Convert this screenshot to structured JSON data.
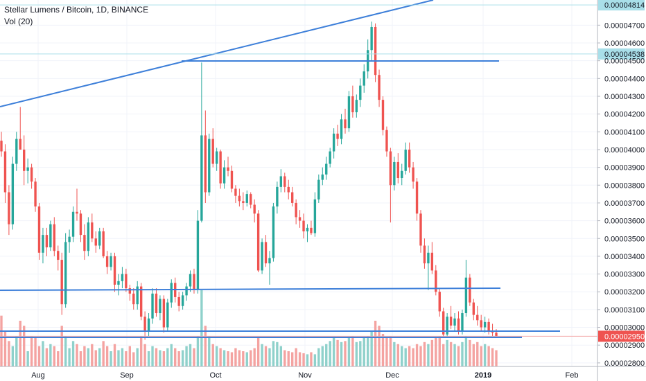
{
  "legend": {
    "title": "Stellar Lumens / Bitcoin, 1D, BINANCE",
    "volume_label": "Vol (20)"
  },
  "colors": {
    "up": "#26a69a",
    "down": "#ef5350",
    "up_volume": "#8fd1cb",
    "down_volume": "#f4a3a1",
    "trendline": "#3d7fd9",
    "crosshair": "#a9dfe9",
    "last_price_line": "#f3a6a6",
    "grid": "#f0f3fa",
    "axis": "#131722"
  },
  "chart_data": {
    "type": "candlestick",
    "title": "Stellar Lumens / Bitcoin, 1D, BINANCE",
    "ylim": [
      2.78e-05,
      4.83e-05
    ],
    "y_ticks": [
      "0.00002800",
      "0.00002900",
      "0.00003000",
      "0.00003100",
      "0.00003200",
      "0.00003300",
      "0.00003400",
      "0.00003500",
      "0.00003600",
      "0.00003700",
      "0.00003800",
      "0.00003900",
      "0.00004000",
      "0.00004100",
      "0.00004200",
      "0.00004300",
      "0.00004400",
      "0.00004500",
      "0.00004600",
      "0.00004700"
    ],
    "x_ticks": [
      "Aug",
      "Sep",
      "Oct",
      "Nov",
      "Dec",
      "2019",
      "Feb"
    ],
    "price_tags": [
      {
        "label": "0.00004814",
        "value": 4.814e-05,
        "style": "crosshair"
      },
      {
        "label": "0.00004538",
        "value": 4.538e-05,
        "style": "crosshair"
      },
      {
        "label": "0.00002950",
        "value": 2.95e-05,
        "style": "last"
      }
    ],
    "volume_label": "Vol (20)",
    "candles": [
      {
        "o": 4050,
        "h": 4100,
        "l": 3960,
        "c": 3990
      },
      {
        "o": 3990,
        "h": 4030,
        "l": 3700,
        "c": 3760
      },
      {
        "o": 3760,
        "h": 3800,
        "l": 3520,
        "c": 3580
      },
      {
        "o": 3580,
        "h": 3960,
        "l": 3550,
        "c": 3920
      },
      {
        "o": 3920,
        "h": 4100,
        "l": 3880,
        "c": 4060
      },
      {
        "o": 4060,
        "h": 4240,
        "l": 4000,
        "c": 4000
      },
      {
        "o": 4000,
        "h": 4080,
        "l": 3800,
        "c": 3880
      },
      {
        "o": 3880,
        "h": 3950,
        "l": 3810,
        "c": 3900
      },
      {
        "o": 3900,
        "h": 3920,
        "l": 3780,
        "c": 3820
      },
      {
        "o": 3820,
        "h": 3840,
        "l": 3650,
        "c": 3680
      },
      {
        "o": 3680,
        "h": 3700,
        "l": 3380,
        "c": 3420
      },
      {
        "o": 3420,
        "h": 3560,
        "l": 3360,
        "c": 3520
      },
      {
        "o": 3520,
        "h": 3560,
        "l": 3400,
        "c": 3450
      },
      {
        "o": 3450,
        "h": 3600,
        "l": 3430,
        "c": 3580
      },
      {
        "o": 3580,
        "h": 3620,
        "l": 3400,
        "c": 3430
      },
      {
        "o": 3430,
        "h": 3460,
        "l": 3320,
        "c": 3380
      },
      {
        "o": 3380,
        "h": 3420,
        "l": 3070,
        "c": 3130
      },
      {
        "o": 3130,
        "h": 3530,
        "l": 3110,
        "c": 3480
      },
      {
        "o": 3480,
        "h": 3550,
        "l": 3420,
        "c": 3510
      },
      {
        "o": 3510,
        "h": 3680,
        "l": 3480,
        "c": 3650
      },
      {
        "o": 3650,
        "h": 3780,
        "l": 3600,
        "c": 3640
      },
      {
        "o": 3640,
        "h": 3660,
        "l": 3480,
        "c": 3520
      },
      {
        "o": 3520,
        "h": 3580,
        "l": 3380,
        "c": 3430
      },
      {
        "o": 3430,
        "h": 3620,
        "l": 3400,
        "c": 3590
      },
      {
        "o": 3590,
        "h": 3640,
        "l": 3480,
        "c": 3500
      },
      {
        "o": 3500,
        "h": 3540,
        "l": 3420,
        "c": 3460
      },
      {
        "o": 3460,
        "h": 3560,
        "l": 3440,
        "c": 3540
      },
      {
        "o": 3540,
        "h": 3560,
        "l": 3390,
        "c": 3400
      },
      {
        "o": 3400,
        "h": 3430,
        "l": 3300,
        "c": 3340
      },
      {
        "o": 3340,
        "h": 3420,
        "l": 3320,
        "c": 3400
      },
      {
        "o": 3400,
        "h": 3420,
        "l": 3200,
        "c": 3240
      },
      {
        "o": 3240,
        "h": 3300,
        "l": 3180,
        "c": 3260
      },
      {
        "o": 3260,
        "h": 3340,
        "l": 3220,
        "c": 3300
      },
      {
        "o": 3300,
        "h": 3330,
        "l": 3200,
        "c": 3220
      },
      {
        "o": 3220,
        "h": 3240,
        "l": 3150,
        "c": 3190
      },
      {
        "o": 3190,
        "h": 3220,
        "l": 3100,
        "c": 3130
      },
      {
        "o": 3130,
        "h": 3260,
        "l": 3100,
        "c": 3230
      },
      {
        "o": 3230,
        "h": 3250,
        "l": 3040,
        "c": 3060
      },
      {
        "o": 3060,
        "h": 3090,
        "l": 2930,
        "c": 2980
      },
      {
        "o": 2980,
        "h": 3080,
        "l": 2950,
        "c": 3050
      },
      {
        "o": 3050,
        "h": 3220,
        "l": 3020,
        "c": 3190
      },
      {
        "o": 3190,
        "h": 3220,
        "l": 3060,
        "c": 3080
      },
      {
        "o": 3080,
        "h": 3180,
        "l": 3040,
        "c": 3160
      },
      {
        "o": 3160,
        "h": 3180,
        "l": 2970,
        "c": 3000
      },
      {
        "o": 3000,
        "h": 3160,
        "l": 2980,
        "c": 3140
      },
      {
        "o": 3140,
        "h": 3270,
        "l": 3110,
        "c": 3250
      },
      {
        "o": 3250,
        "h": 3280,
        "l": 3140,
        "c": 3170
      },
      {
        "o": 3170,
        "h": 3200,
        "l": 3090,
        "c": 3120
      },
      {
        "o": 3120,
        "h": 3200,
        "l": 3100,
        "c": 3180
      },
      {
        "o": 3180,
        "h": 3250,
        "l": 3150,
        "c": 3230
      },
      {
        "o": 3230,
        "h": 3320,
        "l": 3200,
        "c": 3300
      },
      {
        "o": 3300,
        "h": 3330,
        "l": 3190,
        "c": 3210
      },
      {
        "o": 3210,
        "h": 3660,
        "l": 3190,
        "c": 3600
      },
      {
        "o": 3600,
        "h": 4490,
        "l": 3590,
        "c": 4080
      },
      {
        "o": 4080,
        "h": 4220,
        "l": 3700,
        "c": 3760
      },
      {
        "o": 3760,
        "h": 4090,
        "l": 3740,
        "c": 4060
      },
      {
        "o": 4060,
        "h": 4120,
        "l": 3900,
        "c": 3920
      },
      {
        "o": 3920,
        "h": 4010,
        "l": 3880,
        "c": 3990
      },
      {
        "o": 3990,
        "h": 4000,
        "l": 3780,
        "c": 3810
      },
      {
        "o": 3810,
        "h": 3940,
        "l": 3780,
        "c": 3900
      },
      {
        "o": 3900,
        "h": 3960,
        "l": 3850,
        "c": 3880
      },
      {
        "o": 3880,
        "h": 3910,
        "l": 3760,
        "c": 3780
      },
      {
        "o": 3780,
        "h": 3800,
        "l": 3700,
        "c": 3740
      },
      {
        "o": 3740,
        "h": 3780,
        "l": 3680,
        "c": 3710
      },
      {
        "o": 3710,
        "h": 3760,
        "l": 3660,
        "c": 3700
      },
      {
        "o": 3700,
        "h": 3770,
        "l": 3680,
        "c": 3750
      },
      {
        "o": 3750,
        "h": 3760,
        "l": 3670,
        "c": 3690
      },
      {
        "o": 3690,
        "h": 3720,
        "l": 3590,
        "c": 3640
      },
      {
        "o": 3640,
        "h": 3660,
        "l": 3310,
        "c": 3320
      },
      {
        "o": 3320,
        "h": 3500,
        "l": 3300,
        "c": 3480
      },
      {
        "o": 3480,
        "h": 3520,
        "l": 3340,
        "c": 3360
      },
      {
        "o": 3360,
        "h": 3430,
        "l": 3240,
        "c": 3390
      },
      {
        "o": 3390,
        "h": 3700,
        "l": 3370,
        "c": 3680
      },
      {
        "o": 3680,
        "h": 3820,
        "l": 3640,
        "c": 3790
      },
      {
        "o": 3790,
        "h": 3890,
        "l": 3760,
        "c": 3850
      },
      {
        "o": 3850,
        "h": 3870,
        "l": 3760,
        "c": 3790
      },
      {
        "o": 3790,
        "h": 3830,
        "l": 3720,
        "c": 3760
      },
      {
        "o": 3760,
        "h": 3790,
        "l": 3680,
        "c": 3700
      },
      {
        "o": 3700,
        "h": 3720,
        "l": 3580,
        "c": 3620
      },
      {
        "o": 3620,
        "h": 3660,
        "l": 3560,
        "c": 3600
      },
      {
        "o": 3600,
        "h": 3640,
        "l": 3500,
        "c": 3540
      },
      {
        "o": 3540,
        "h": 3580,
        "l": 3480,
        "c": 3560
      },
      {
        "o": 3560,
        "h": 3600,
        "l": 3520,
        "c": 3530
      },
      {
        "o": 3530,
        "h": 3760,
        "l": 3510,
        "c": 3720
      },
      {
        "o": 3720,
        "h": 3860,
        "l": 3700,
        "c": 3830
      },
      {
        "o": 3830,
        "h": 3900,
        "l": 3800,
        "c": 3860
      },
      {
        "o": 3860,
        "h": 3960,
        "l": 3830,
        "c": 3920
      },
      {
        "o": 3920,
        "h": 4010,
        "l": 3900,
        "c": 3990
      },
      {
        "o": 3990,
        "h": 4120,
        "l": 3950,
        "c": 4090
      },
      {
        "o": 4090,
        "h": 4140,
        "l": 4020,
        "c": 4060
      },
      {
        "o": 4060,
        "h": 4200,
        "l": 4030,
        "c": 4170
      },
      {
        "o": 4170,
        "h": 4230,
        "l": 4090,
        "c": 4120
      },
      {
        "o": 4120,
        "h": 4330,
        "l": 4100,
        "c": 4300
      },
      {
        "o": 4300,
        "h": 4360,
        "l": 4180,
        "c": 4210
      },
      {
        "o": 4210,
        "h": 4310,
        "l": 4180,
        "c": 4280
      },
      {
        "o": 4280,
        "h": 4400,
        "l": 4240,
        "c": 4360
      },
      {
        "o": 4360,
        "h": 4480,
        "l": 4320,
        "c": 4440
      },
      {
        "o": 4440,
        "h": 4620,
        "l": 4400,
        "c": 4560
      },
      {
        "o": 4560,
        "h": 4720,
        "l": 4500,
        "c": 4690
      },
      {
        "o": 4690,
        "h": 4710,
        "l": 4380,
        "c": 4420
      },
      {
        "o": 4420,
        "h": 4450,
        "l": 4240,
        "c": 4280
      },
      {
        "o": 4280,
        "h": 4300,
        "l": 4080,
        "c": 4110
      },
      {
        "o": 4110,
        "h": 4130,
        "l": 3960,
        "c": 3990
      },
      {
        "o": 3990,
        "h": 4010,
        "l": 3590,
        "c": 3800
      },
      {
        "o": 3800,
        "h": 3960,
        "l": 3770,
        "c": 3930
      },
      {
        "o": 3930,
        "h": 3980,
        "l": 3810,
        "c": 3840
      },
      {
        "o": 3840,
        "h": 3920,
        "l": 3800,
        "c": 3880
      },
      {
        "o": 3880,
        "h": 4040,
        "l": 3860,
        "c": 4000
      },
      {
        "o": 4000,
        "h": 4040,
        "l": 3870,
        "c": 3900
      },
      {
        "o": 3900,
        "h": 3930,
        "l": 3780,
        "c": 3820
      },
      {
        "o": 3820,
        "h": 3840,
        "l": 3600,
        "c": 3640
      },
      {
        "o": 3640,
        "h": 3660,
        "l": 3420,
        "c": 3460
      },
      {
        "o": 3460,
        "h": 3500,
        "l": 3330,
        "c": 3360
      },
      {
        "o": 3360,
        "h": 3460,
        "l": 3210,
        "c": 3420
      },
      {
        "o": 3420,
        "h": 3480,
        "l": 3300,
        "c": 3320
      },
      {
        "o": 3320,
        "h": 3350,
        "l": 3180,
        "c": 3200
      },
      {
        "o": 3200,
        "h": 3220,
        "l": 3060,
        "c": 3090
      },
      {
        "o": 3090,
        "h": 3110,
        "l": 2940,
        "c": 2960
      },
      {
        "o": 2960,
        "h": 3080,
        "l": 2940,
        "c": 3060
      },
      {
        "o": 3060,
        "h": 3120,
        "l": 2990,
        "c": 3010
      },
      {
        "o": 3010,
        "h": 3080,
        "l": 2980,
        "c": 3050
      },
      {
        "o": 3050,
        "h": 3090,
        "l": 2960,
        "c": 2980
      },
      {
        "o": 2980,
        "h": 3100,
        "l": 2960,
        "c": 3080
      },
      {
        "o": 3080,
        "h": 3380,
        "l": 3060,
        "c": 3280
      },
      {
        "o": 3280,
        "h": 3300,
        "l": 3120,
        "c": 3140
      },
      {
        "o": 3140,
        "h": 3160,
        "l": 3040,
        "c": 3070
      },
      {
        "o": 3070,
        "h": 3120,
        "l": 3010,
        "c": 3040
      },
      {
        "o": 3040,
        "h": 3070,
        "l": 2980,
        "c": 3000
      },
      {
        "o": 3000,
        "h": 3060,
        "l": 2970,
        "c": 3030
      },
      {
        "o": 3030,
        "h": 3050,
        "l": 2960,
        "c": 2980
      },
      {
        "o": 2980,
        "h": 3020,
        "l": 2950,
        "c": 2970
      },
      {
        "o": 2970,
        "h": 2990,
        "l": 2940,
        "c": 2950
      }
    ],
    "volume": [
      50,
      35,
      25,
      20,
      30,
      45,
      40,
      15,
      30,
      28,
      20,
      25,
      18,
      22,
      20,
      15,
      40,
      30,
      18,
      25,
      22,
      15,
      20,
      18,
      22,
      16,
      18,
      25,
      20,
      15,
      22,
      16,
      18,
      15,
      20,
      14,
      18,
      30,
      22,
      15,
      20,
      18,
      16,
      15,
      18,
      22,
      18,
      15,
      16,
      20,
      22,
      18,
      30,
      75,
      40,
      30,
      22,
      20,
      18,
      16,
      15,
      14,
      18,
      16,
      15,
      14,
      16,
      18,
      28,
      22,
      20,
      18,
      25,
      24,
      20,
      16,
      15,
      14,
      18,
      14,
      13,
      12,
      14,
      12,
      18,
      20,
      22,
      25,
      28,
      26,
      24,
      25,
      28,
      30,
      24,
      25,
      28,
      30,
      35,
      45,
      40,
      32,
      28,
      30,
      24,
      22,
      20,
      18,
      20,
      18,
      22,
      20,
      24,
      22,
      26,
      28,
      30,
      22,
      26,
      24,
      22,
      20,
      24,
      30,
      26,
      22,
      24,
      20,
      22,
      20,
      18,
      16
    ]
  }
}
